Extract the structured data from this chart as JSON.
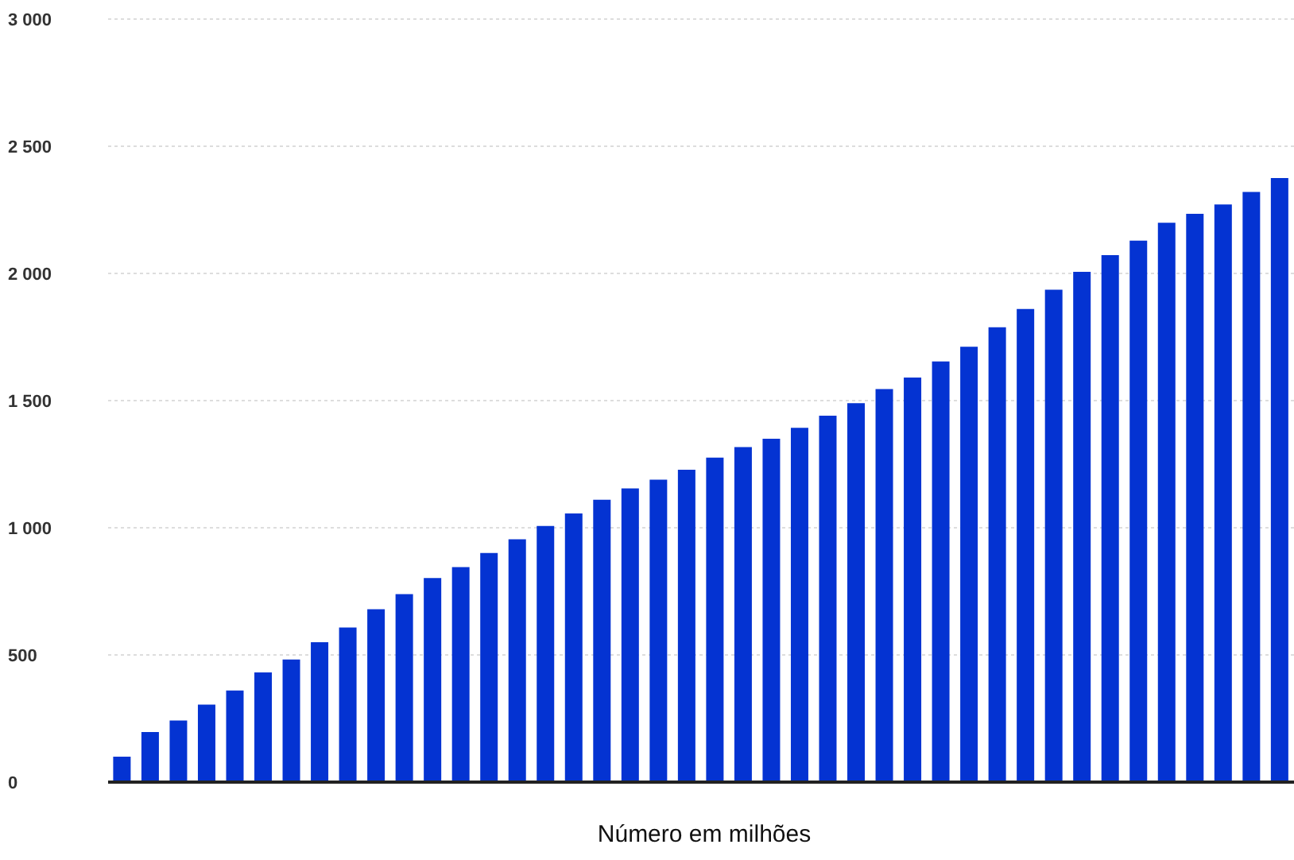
{
  "chart_data": {
    "type": "bar",
    "xlabel": "Número em milhões",
    "categories": [
      null,
      null,
      null,
      null,
      null,
      null,
      null,
      null,
      null,
      null,
      null,
      null,
      null,
      null,
      null,
      null,
      null,
      null,
      null,
      null,
      null,
      null,
      null,
      null,
      null,
      null,
      null,
      null,
      null,
      null,
      null,
      null,
      null,
      null,
      null,
      null,
      null,
      null,
      null,
      null,
      null,
      null
    ],
    "values": [
      100,
      197,
      242,
      305,
      360,
      431,
      482,
      550,
      608,
      680,
      739,
      802,
      845,
      901,
      955,
      1007,
      1056,
      1110,
      1155,
      1189,
      1228,
      1276,
      1317,
      1350,
      1393,
      1441,
      1490,
      1545,
      1591,
      1654,
      1712,
      1788,
      1860,
      1936,
      2006,
      2072,
      2129,
      2199,
      2234,
      2271,
      2320,
      2375
    ],
    "color": "#0433d2",
    "ylim": [
      0,
      3000
    ],
    "yticks": [
      {
        "value": 0,
        "label": "0"
      },
      {
        "value": 500,
        "label": "500"
      },
      {
        "value": 1000,
        "label": "1 000"
      },
      {
        "value": 1500,
        "label": "1 500"
      },
      {
        "value": 2000,
        "label": "2 000"
      },
      {
        "value": 2500,
        "label": "2 500"
      },
      {
        "value": 3000,
        "label": "3 000"
      }
    ],
    "grid": "y"
  }
}
